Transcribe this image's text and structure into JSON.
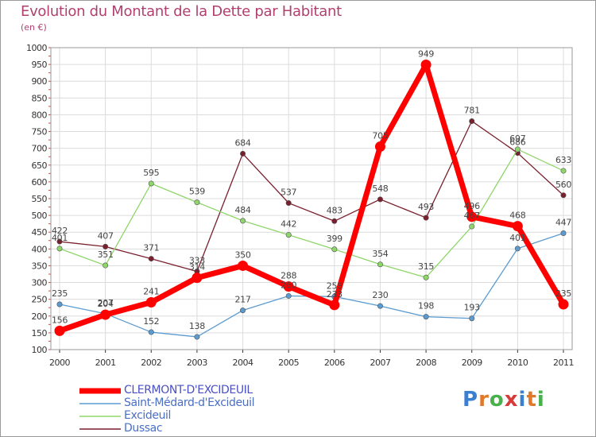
{
  "title": "Evolution du Montant de la Dette par Habitant",
  "subtitle": "(en €)",
  "logo": {
    "text": "Proxiti",
    "letter_colors": [
      "#3a7fd0",
      "#e07a2a",
      "#49b04c",
      "#d63b3b",
      "#3a7fd0",
      "#e07a2a",
      "#49b04c"
    ]
  },
  "chart_data": {
    "type": "line",
    "x": [
      "2000",
      "2001",
      "2002",
      "2003",
      "2004",
      "2005",
      "2006",
      "2007",
      "2008",
      "2009",
      "2010",
      "2011"
    ],
    "y_ticks": [
      "100",
      "150",
      "200",
      "250",
      "300",
      "350",
      "400",
      "450",
      "500",
      "550",
      "600",
      "650",
      "700",
      "750",
      "800",
      "850",
      "900",
      "950",
      "1000"
    ],
    "ylim": [
      100,
      1000
    ],
    "grid": true,
    "legend_position": "bottom-left",
    "series": [
      {
        "name": "CLERMONT-D'EXCIDEUIL",
        "color": "#ff0000",
        "values": [
          156,
          204,
          241,
          314,
          350,
          288,
          233,
          705,
          949,
          496,
          468,
          235
        ],
        "labels": [
          "156",
          "204",
          "241",
          "314",
          "350",
          "288",
          "233",
          "705",
          "949",
          "496",
          "468",
          "235"
        ]
      },
      {
        "name": "Saint-Médard-d'Excideuil",
        "color": "#5b9bd0",
        "values": [
          235,
          207,
          152,
          138,
          217,
          260,
          258,
          230,
          198,
          193,
          401,
          447
        ],
        "labels": [
          "235",
          "207",
          "152",
          "138",
          "217",
          "260",
          "258",
          "230",
          "198",
          "193",
          "401",
          "447"
        ]
      },
      {
        "name": "Excideuil",
        "color": "#8fd66a",
        "values": [
          401,
          351,
          595,
          539,
          484,
          442,
          399,
          354,
          315,
          467,
          697,
          633
        ],
        "labels": [
          "401",
          "351",
          "595",
          "539",
          "484",
          "442",
          "399",
          "354",
          "315",
          "467",
          "697",
          "633"
        ]
      },
      {
        "name": "Dussac",
        "color": "#7a1f2e",
        "values": [
          422,
          407,
          371,
          333,
          684,
          537,
          483,
          548,
          493,
          781,
          686,
          560
        ],
        "labels": [
          "422",
          "407",
          "371",
          "333",
          "684",
          "537",
          "483",
          "548",
          "493",
          "781",
          "686",
          "560"
        ]
      }
    ]
  }
}
